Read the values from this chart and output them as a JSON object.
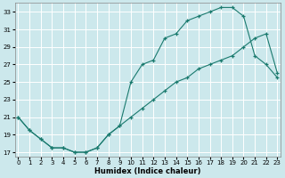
{
  "xlabel": "Humidex (Indice chaleur)",
  "bg_color": "#cce8ec",
  "grid_color": "#ffffff",
  "line_color": "#1a7a6e",
  "marker": "+",
  "line1_x": [
    0,
    1,
    2,
    3,
    4,
    5,
    6,
    7,
    8,
    9,
    10,
    11,
    12,
    13,
    14,
    15,
    16,
    17,
    18,
    19,
    20,
    21,
    22,
    23
  ],
  "line1_y": [
    21,
    19.5,
    18.5,
    17.5,
    17.5,
    17,
    17,
    17.5,
    19,
    20,
    25,
    27,
    27.5,
    30,
    30.5,
    32,
    32.5,
    33,
    33.5,
    33.5,
    32.5,
    28,
    27,
    25.5
  ],
  "line2_x": [
    0,
    1,
    2,
    3,
    4,
    5,
    6,
    7,
    8,
    9,
    10,
    11,
    12,
    13,
    14,
    15,
    16,
    17,
    18,
    19,
    20,
    21,
    22,
    23
  ],
  "line2_y": [
    21,
    19.5,
    18.5,
    17.5,
    17.5,
    17,
    17,
    17.5,
    19,
    20,
    21,
    22,
    23,
    24,
    25,
    25.5,
    26.5,
    27,
    27.5,
    28,
    29,
    30,
    30.5,
    26
  ],
  "xlim": [
    0,
    23
  ],
  "ylim": [
    16.5,
    34
  ],
  "yticks": [
    17,
    19,
    21,
    23,
    25,
    27,
    29,
    31,
    33
  ],
  "xticks": [
    0,
    1,
    2,
    3,
    4,
    5,
    6,
    7,
    8,
    9,
    10,
    11,
    12,
    13,
    14,
    15,
    16,
    17,
    18,
    19,
    20,
    21,
    22,
    23
  ]
}
